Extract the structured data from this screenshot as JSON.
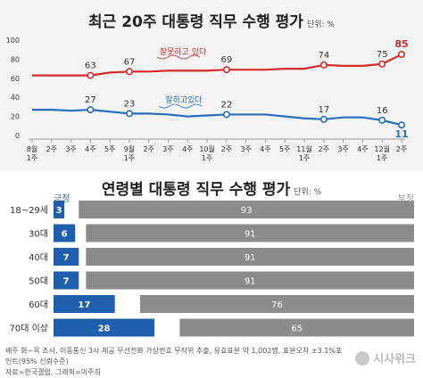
{
  "chart_data": [
    {
      "type": "line",
      "title": "최근 20주 대통령 직무 수행 평가",
      "unit": "단위: %",
      "x": [
        "8월 1주",
        "2주",
        "3주",
        "4주",
        "5주",
        "9월 1주",
        "2주",
        "3주",
        "4주",
        "10월 1주",
        "2주",
        "3주",
        "4주",
        "5주",
        "11월 1주",
        "2주",
        "3주",
        "4주",
        "12월 1주",
        "2주"
      ],
      "x_ticks": [
        {
          "main": "8월",
          "sub": "1주"
        },
        {
          "main": "2주",
          "sub": ""
        },
        {
          "main": "3주",
          "sub": ""
        },
        {
          "main": "4주",
          "sub": ""
        },
        {
          "main": "5주",
          "sub": ""
        },
        {
          "main": "9월",
          "sub": "1주"
        },
        {
          "main": "2주",
          "sub": ""
        },
        {
          "main": "3주",
          "sub": ""
        },
        {
          "main": "4주",
          "sub": ""
        },
        {
          "main": "10월",
          "sub": "1주"
        },
        {
          "main": "2주",
          "sub": ""
        },
        {
          "main": "3주",
          "sub": ""
        },
        {
          "main": "4주",
          "sub": ""
        },
        {
          "main": "5주",
          "sub": ""
        },
        {
          "main": "11월",
          "sub": "1주"
        },
        {
          "main": "2주",
          "sub": ""
        },
        {
          "main": "3주",
          "sub": ""
        },
        {
          "main": "4주",
          "sub": ""
        },
        {
          "main": "12월",
          "sub": "1주"
        },
        {
          "main": "2주",
          "sub": ""
        }
      ],
      "ylim": [
        0,
        100
      ],
      "yticks": [
        0,
        20,
        40,
        60,
        80,
        100
      ],
      "series": [
        {
          "name": "잘못하고 있다",
          "color": "#d62b2b",
          "values": [
            63,
            63,
            63,
            63,
            66,
            67,
            67,
            68,
            68,
            68,
            69,
            69,
            69,
            70,
            70,
            74,
            73,
            73,
            75,
            85
          ]
        },
        {
          "name": "잘하고있다",
          "color": "#2a6ebb",
          "values": [
            27,
            27,
            26,
            27,
            25,
            23,
            23,
            22,
            20,
            21,
            22,
            22,
            22,
            20,
            18,
            17,
            19,
            19,
            16,
            11
          ]
        }
      ],
      "data_labels": [
        {
          "series": 0,
          "index": 3,
          "text": "63"
        },
        {
          "series": 0,
          "index": 5,
          "text": "67"
        },
        {
          "series": 0,
          "index": 10,
          "text": "69"
        },
        {
          "series": 0,
          "index": 15,
          "text": "74"
        },
        {
          "series": 0,
          "index": 18,
          "text": "75"
        },
        {
          "series": 0,
          "index": 19,
          "text": "85"
        },
        {
          "series": 1,
          "index": 3,
          "text": "27"
        },
        {
          "series": 1,
          "index": 5,
          "text": "23"
        },
        {
          "series": 1,
          "index": 10,
          "text": "22"
        },
        {
          "series": 1,
          "index": 15,
          "text": "17"
        },
        {
          "series": 1,
          "index": 18,
          "text": "16"
        },
        {
          "series": 1,
          "index": 19,
          "text": "11"
        }
      ],
      "grid": false
    },
    {
      "type": "bar",
      "stacked": true,
      "orientation": "horizontal",
      "title": "연령별 대통령 직무 수행 평가",
      "unit": "단위: %",
      "categories": [
        "18~29세",
        "30대",
        "40대",
        "50대",
        "60대",
        "70대 이상"
      ],
      "series": [
        {
          "name": "긍정",
          "color": "#1f5fae",
          "values": [
            3,
            6,
            7,
            7,
            17,
            28
          ]
        },
        {
          "name": "부정",
          "color": "#8c8c8c",
          "values": [
            93,
            91,
            91,
            91,
            76,
            65
          ]
        }
      ],
      "xlim": [
        0,
        100
      ]
    }
  ],
  "footer": {
    "line1": "배주 화~목 조사, 이동통신 3사 제공 무선전화 가상번호 무작위 추출, 유효표본 약 1,002명, 표본오차 ±3.1%포인트(95% 신뢰수준)",
    "line2": "자료=한국갤럽, 그래픽=이주희"
  },
  "logo": {
    "text": "시사위크"
  }
}
